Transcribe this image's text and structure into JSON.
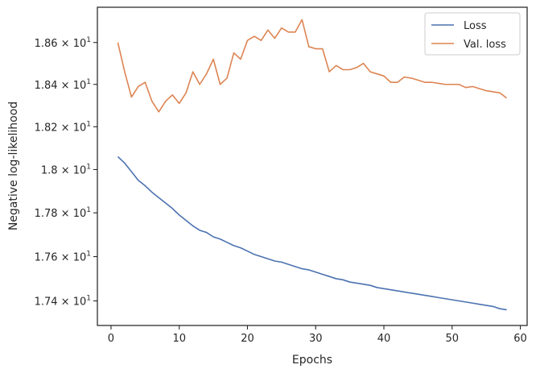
{
  "chart_data": {
    "type": "line",
    "xlabel": "Epochs",
    "ylabel": "Negative log-likelihood",
    "y_scale": "log",
    "xlim": [
      -2,
      61
    ],
    "ylim": [
      17.29,
      18.77
    ],
    "x_ticks": [
      0,
      10,
      20,
      30,
      40,
      50,
      60
    ],
    "y_ticks": [
      {
        "value": 17.4,
        "mantissa": "1.74",
        "base": "10",
        "exp": "1"
      },
      {
        "value": 17.6,
        "mantissa": "1.76",
        "base": "10",
        "exp": "1"
      },
      {
        "value": 17.8,
        "mantissa": "1.78",
        "base": "10",
        "exp": "1"
      },
      {
        "value": 18.0,
        "mantissa": "1.8",
        "base": "10",
        "exp": "1"
      },
      {
        "value": 18.2,
        "mantissa": "1.82",
        "base": "10",
        "exp": "1"
      },
      {
        "value": 18.4,
        "mantissa": "1.84",
        "base": "10",
        "exp": "1"
      },
      {
        "value": 18.6,
        "mantissa": "1.86",
        "base": "10",
        "exp": "1"
      }
    ],
    "legend_position": "top-right",
    "grid": false,
    "x": [
      1,
      2,
      3,
      4,
      5,
      6,
      7,
      8,
      9,
      10,
      11,
      12,
      13,
      14,
      15,
      16,
      17,
      18,
      19,
      20,
      21,
      22,
      23,
      24,
      25,
      26,
      27,
      28,
      29,
      30,
      31,
      32,
      33,
      34,
      35,
      36,
      37,
      38,
      39,
      40,
      41,
      42,
      43,
      44,
      45,
      46,
      47,
      48,
      49,
      50,
      51,
      52,
      53,
      54,
      55,
      56,
      57,
      58
    ],
    "series": [
      {
        "name": "Loss",
        "color": "#4c72b0",
        "values": [
          18.06,
          18.03,
          17.99,
          17.95,
          17.925,
          17.895,
          17.87,
          17.845,
          17.82,
          17.79,
          17.765,
          17.74,
          17.72,
          17.71,
          17.69,
          17.68,
          17.665,
          17.65,
          17.64,
          17.625,
          17.61,
          17.6,
          17.59,
          17.58,
          17.575,
          17.565,
          17.555,
          17.545,
          17.54,
          17.53,
          17.52,
          17.51,
          17.5,
          17.495,
          17.485,
          17.48,
          17.475,
          17.47,
          17.46,
          17.455,
          17.45,
          17.445,
          17.44,
          17.435,
          17.43,
          17.425,
          17.42,
          17.415,
          17.41,
          17.405,
          17.4,
          17.395,
          17.39,
          17.385,
          17.38,
          17.375,
          17.365,
          17.36
        ]
      },
      {
        "name": "Val. loss",
        "color": "#dd8452",
        "values": [
          18.6,
          18.46,
          18.34,
          18.39,
          18.41,
          18.32,
          18.27,
          18.32,
          18.35,
          18.31,
          18.36,
          18.46,
          18.4,
          18.45,
          18.52,
          18.4,
          18.43,
          18.55,
          18.52,
          18.61,
          18.63,
          18.61,
          18.66,
          18.62,
          18.67,
          18.65,
          18.65,
          18.71,
          18.58,
          18.57,
          18.57,
          18.46,
          18.49,
          18.47,
          18.47,
          18.48,
          18.5,
          18.46,
          18.45,
          18.44,
          18.41,
          18.41,
          18.435,
          18.43,
          18.42,
          18.41,
          18.41,
          18.405,
          18.4,
          18.4,
          18.4,
          18.385,
          18.39,
          18.38,
          18.37,
          18.365,
          18.36,
          18.335
        ]
      }
    ]
  }
}
